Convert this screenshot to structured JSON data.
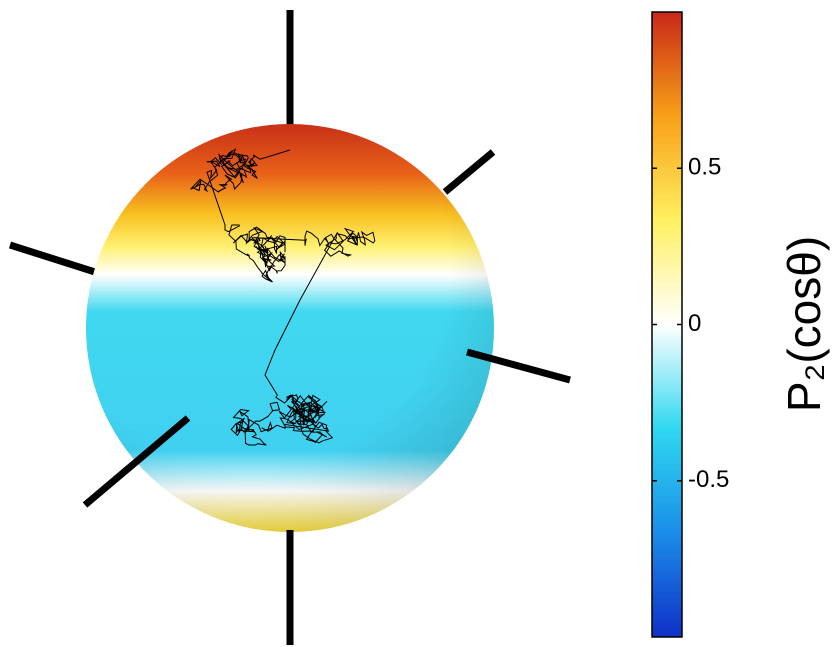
{
  "chart_data": {
    "type": "colorbar",
    "colorbar_label": "P₂(cosθ)",
    "clim": [
      -1,
      1
    ],
    "ticks": [
      0.5,
      0,
      -0.5
    ],
    "colormap": [
      "#1030c8",
      "#1a8ee8",
      "#30d8f0",
      "#ffffff",
      "#fff060",
      "#f8a018",
      "#c82818"
    ]
  }
}
